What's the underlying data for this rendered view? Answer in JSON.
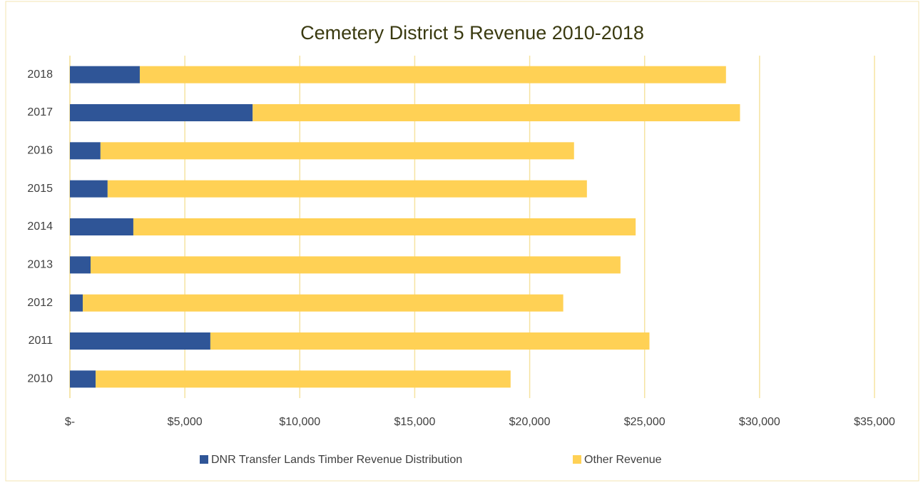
{
  "chart_data": {
    "type": "stacked_bar_horizontal",
    "title": "Cemetery District 5 Revenue 2010-2018",
    "categories": [
      "2010",
      "2011",
      "2012",
      "2013",
      "2014",
      "2015",
      "2016",
      "2017",
      "2018"
    ],
    "series": [
      {
        "name": "DNR Transfer Lands Timber Revenue Distribution",
        "color": "#2f5597",
        "values": [
          1120,
          6110,
          560,
          900,
          2760,
          1640,
          1330,
          7950,
          3040
        ]
      },
      {
        "name": "Other Revenue",
        "color": "#ffd155",
        "values": [
          18050,
          19100,
          20900,
          23050,
          21850,
          20850,
          20600,
          21200,
          25500
        ]
      }
    ],
    "xlim": [
      0,
      35000
    ],
    "xticks": [
      {
        "value": 0,
        "label": "$-"
      },
      {
        "value": 5000,
        "label": "$5,000"
      },
      {
        "value": 10000,
        "label": "$10,000"
      },
      {
        "value": 15000,
        "label": "$15,000"
      },
      {
        "value": 20000,
        "label": "$20,000"
      },
      {
        "value": 25000,
        "label": "$25,000"
      },
      {
        "value": 30000,
        "label": "$30,000"
      },
      {
        "value": 35000,
        "label": "$35,000"
      }
    ],
    "grid": true,
    "legend": "bottom"
  }
}
